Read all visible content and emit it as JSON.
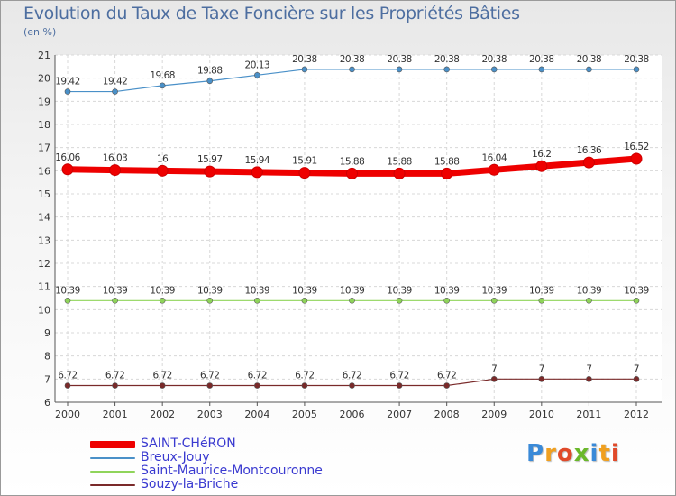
{
  "chart_data": {
    "type": "line",
    "title": "Evolution du Taux de Taxe Foncière sur les Propriétés Bâties",
    "ylabel": "(en %)",
    "xlabel": "",
    "x": [
      "2000",
      "2001",
      "2002",
      "2003",
      "2004",
      "2005",
      "2006",
      "2007",
      "2008",
      "2009",
      "2010",
      "2011",
      "2012"
    ],
    "ylim": [
      6,
      21
    ],
    "yticks": [
      6,
      7,
      8,
      9,
      10,
      11,
      12,
      13,
      14,
      15,
      16,
      17,
      18,
      19,
      20,
      21
    ],
    "grid": true,
    "legend_position": "bottom-left",
    "series": [
      {
        "name": "SAINT-CHéRON",
        "color": "#ee0000",
        "values": [
          16.06,
          16.03,
          16,
          15.97,
          15.94,
          15.91,
          15.88,
          15.88,
          15.88,
          16.04,
          16.2,
          16.36,
          16.52
        ],
        "labels": [
          "16.06",
          "16.03",
          "16",
          "15.97",
          "15.94",
          "15.91",
          "15.88",
          "15.88",
          "15.88",
          "16.04",
          "16.2",
          "16.36",
          "16.52"
        ]
      },
      {
        "name": "Breux-Jouy",
        "color": "#4a90c8",
        "values": [
          19.42,
          19.42,
          19.68,
          19.88,
          20.13,
          20.38,
          20.38,
          20.38,
          20.38,
          20.38,
          20.38,
          20.38,
          20.38
        ],
        "labels": [
          "19.42",
          "19.42",
          "19.68",
          "19.88",
          "20.13",
          "20.38",
          "20.38",
          "20.38",
          "20.38",
          "20.38",
          "20.38",
          "20.38",
          "20.38"
        ]
      },
      {
        "name": "Saint-Maurice-Montcouronne",
        "color": "#8fd45a",
        "values": [
          10.39,
          10.39,
          10.39,
          10.39,
          10.39,
          10.39,
          10.39,
          10.39,
          10.39,
          10.39,
          10.39,
          10.39,
          10.39
        ],
        "labels": [
          "10.39",
          "10.39",
          "10.39",
          "10.39",
          "10.39",
          "10.39",
          "10.39",
          "10.39",
          "10.39",
          "10.39",
          "10.39",
          "10.39",
          "10.39"
        ]
      },
      {
        "name": "Souzy-la-Briche",
        "color": "#7a2a2a",
        "values": [
          6.72,
          6.72,
          6.72,
          6.72,
          6.72,
          6.72,
          6.72,
          6.72,
          6.72,
          7,
          7,
          7,
          7
        ],
        "labels": [
          "6.72",
          "6.72",
          "6.72",
          "6.72",
          "6.72",
          "6.72",
          "6.72",
          "6.72",
          "6.72",
          "7",
          "7",
          "7",
          "7"
        ]
      }
    ]
  },
  "logo": {
    "text": "Proxiti",
    "letter_colors": [
      "#3a8ad8",
      "#f0a020",
      "#e04a2a",
      "#6ab82a",
      "#3a8ad8",
      "#f0a020",
      "#e04a2a"
    ]
  }
}
